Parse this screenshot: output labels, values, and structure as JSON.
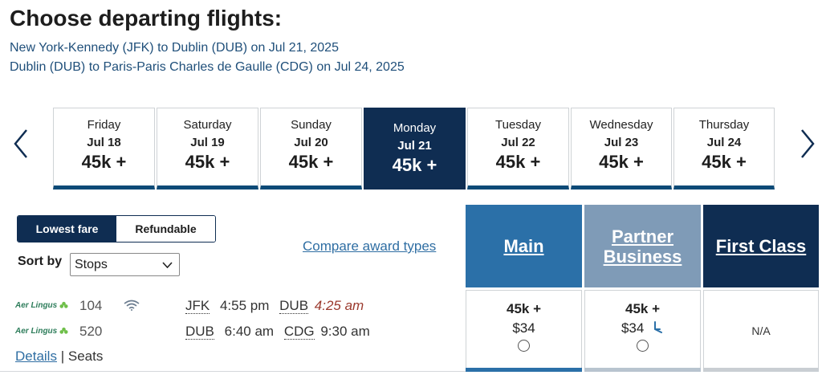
{
  "page_title": "Choose departing flights:",
  "routes": [
    "New York-Kennedy (JFK) to Dublin (DUB) on Jul 21, 2025",
    "Dublin (DUB) to Paris-Paris Charles de Gaulle (CDG) on Jul 24, 2025"
  ],
  "date_strip": {
    "prev_icon": "chevron-left-icon",
    "next_icon": "chevron-right-icon",
    "days": [
      {
        "day": "Friday",
        "date": "Jul 18",
        "price": "45k +"
      },
      {
        "day": "Saturday",
        "date": "Jul 19",
        "price": "45k +"
      },
      {
        "day": "Sunday",
        "date": "Jul 20",
        "price": "45k +"
      },
      {
        "day": "Monday",
        "date": "Jul 21",
        "price": "45k +",
        "selected": true
      },
      {
        "day": "Tuesday",
        "date": "Jul 22",
        "price": "45k +"
      },
      {
        "day": "Wednesday",
        "date": "Jul 23",
        "price": "45k +"
      },
      {
        "day": "Thursday",
        "date": "Jul 24",
        "price": "45k +"
      }
    ]
  },
  "fare_toggle": {
    "lowest_fare": "Lowest fare",
    "refundable": "Refundable",
    "selected": "Lowest fare"
  },
  "sort": {
    "label": "Sort by",
    "selected": "Stops"
  },
  "compare_link": "Compare award types",
  "cabins": [
    {
      "label": "Main",
      "color": "#2b70a8"
    },
    {
      "label_line1": "Partner",
      "label_line2": "Business",
      "color": "#7f9bb7"
    },
    {
      "label": "First Class",
      "color": "#0f2d52"
    }
  ],
  "flight": {
    "segments": [
      {
        "airline": "Aer Lingus",
        "number": "104",
        "wifi_icon": "wifi-icon",
        "from": "JFK",
        "depart": "4:55 pm",
        "to": "DUB",
        "arrive": "4:25 am",
        "arrive_next_day_color": "#9b3a2e"
      },
      {
        "airline": "Aer Lingus",
        "number": "520",
        "from": "DUB",
        "depart": "6:40 am",
        "to": "CDG",
        "arrive": "9:30 am"
      }
    ],
    "details_link": "Details",
    "separator": "|",
    "seats_label": "Seats",
    "fares": {
      "main": {
        "miles": "45k +",
        "cash": "$34"
      },
      "partner_business": {
        "miles": "45k +",
        "cash": "$34",
        "icon": "lie-flat-seat-icon"
      },
      "first_class": {
        "value": "N/A"
      }
    }
  },
  "colors": {
    "brand_navy": "#0f2d52",
    "link_blue": "#2f6ea3",
    "main_blue": "#2b70a8",
    "partner_gray": "#7f9bb7"
  }
}
